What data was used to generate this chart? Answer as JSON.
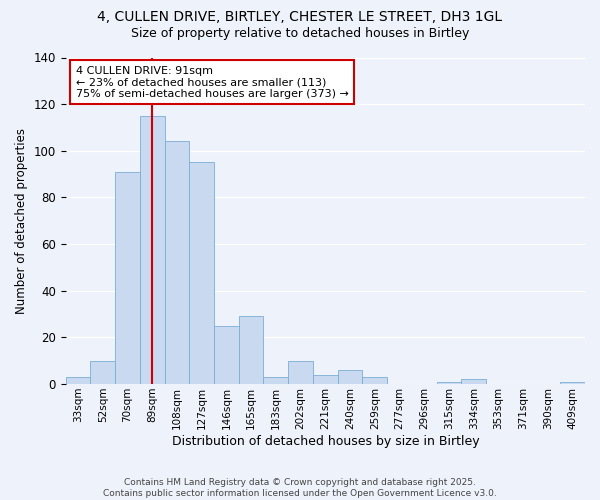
{
  "title1": "4, CULLEN DRIVE, BIRTLEY, CHESTER LE STREET, DH3 1GL",
  "title2": "Size of property relative to detached houses in Birtley",
  "xlabel": "Distribution of detached houses by size in Birtley",
  "ylabel": "Number of detached properties",
  "footnote": "Contains HM Land Registry data © Crown copyright and database right 2025.\nContains public sector information licensed under the Open Government Licence v3.0.",
  "categories": [
    "33sqm",
    "52sqm",
    "70sqm",
    "89sqm",
    "108sqm",
    "127sqm",
    "146sqm",
    "165sqm",
    "183sqm",
    "202sqm",
    "221sqm",
    "240sqm",
    "259sqm",
    "277sqm",
    "296sqm",
    "315sqm",
    "334sqm",
    "353sqm",
    "371sqm",
    "390sqm",
    "409sqm"
  ],
  "values": [
    3,
    10,
    91,
    115,
    104,
    95,
    25,
    29,
    3,
    10,
    4,
    6,
    3,
    0,
    0,
    1,
    2,
    0,
    0,
    0,
    1
  ],
  "bar_color": "#c8d9f0",
  "bar_edge_color": "#7aaed6",
  "annotation_text": "4 CULLEN DRIVE: 91sqm\n← 23% of detached houses are smaller (113)\n75% of semi-detached houses are larger (373) →",
  "red_line_x": 3.0,
  "ylim": [
    0,
    140
  ],
  "background_color": "#eef2fa",
  "grid_color": "#ffffff",
  "annotation_box_facecolor": "#ffffff",
  "annotation_box_edge": "#cc0000",
  "red_line_color": "#cc0000"
}
